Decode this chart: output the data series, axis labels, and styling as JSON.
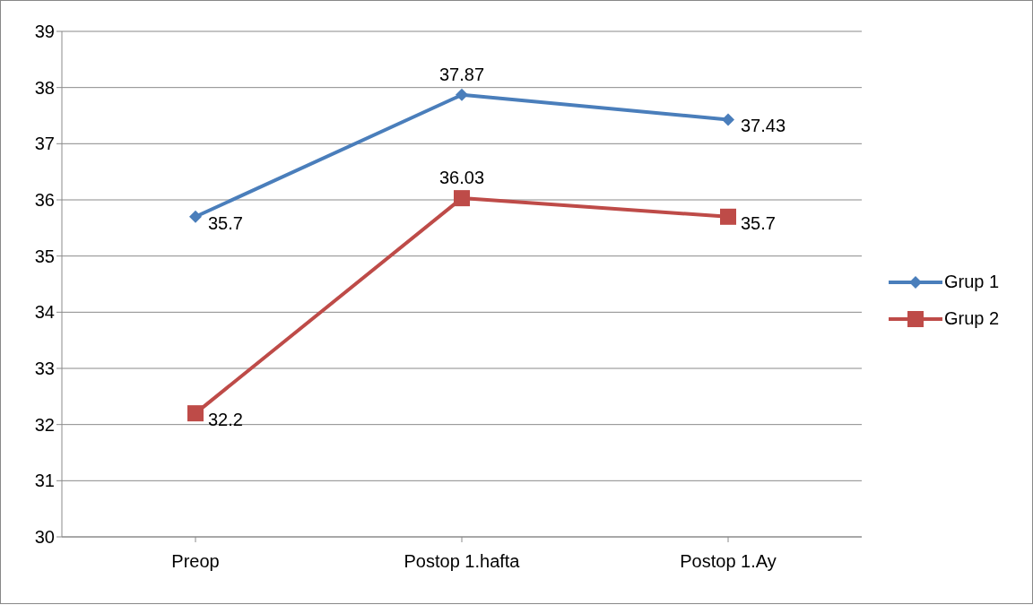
{
  "chart_data": {
    "type": "line",
    "categories": [
      "Preop",
      "Postop 1.hafta",
      "Postop 1.Ay"
    ],
    "series": [
      {
        "name": "Grup 1",
        "color": "#4a7ebb",
        "values": [
          35.7,
          37.87,
          37.43
        ],
        "marker": "diamond"
      },
      {
        "name": "Grup 2",
        "color": "#be4b48",
        "values": [
          32.2,
          36.03,
          35.7
        ],
        "marker": "square"
      }
    ],
    "ylim": [
      30,
      39
    ],
    "yticks": [
      30,
      31,
      32,
      33,
      34,
      35,
      36,
      37,
      38,
      39
    ],
    "grid": "y",
    "legend": "right",
    "data_labels": true,
    "line_style": "solid"
  }
}
